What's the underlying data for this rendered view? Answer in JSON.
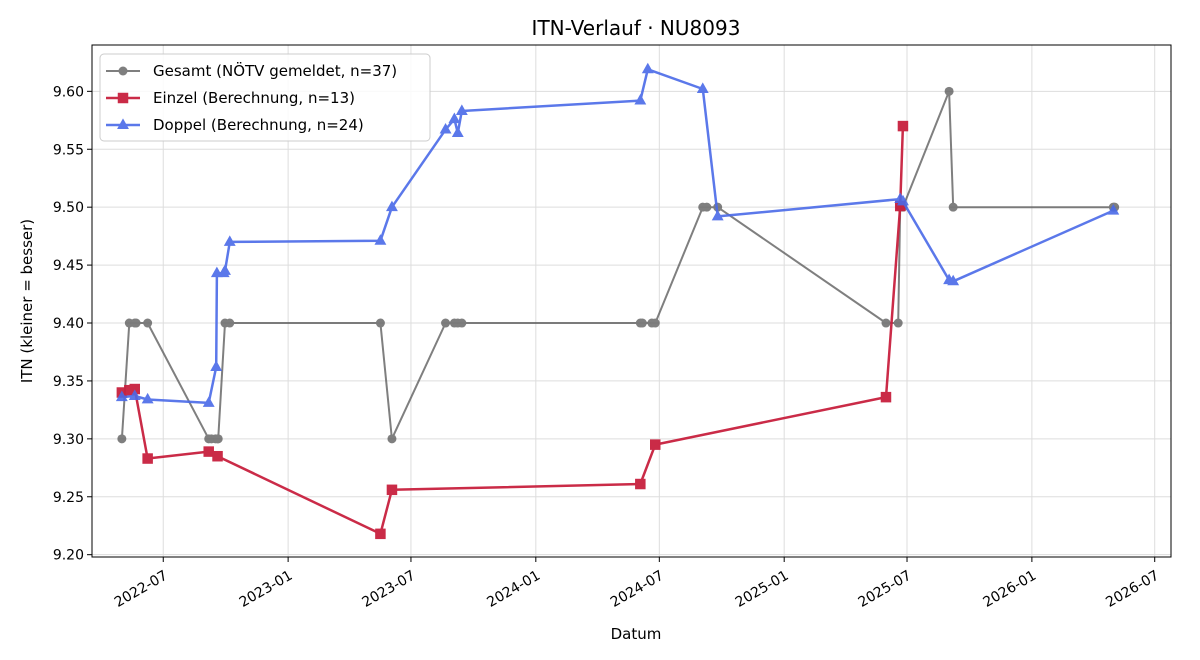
{
  "chart_data": {
    "type": "line",
    "title": "ITN-Verlauf · NU8093",
    "xlabel": "Datum",
    "ylabel": "ITN  (kleiner = besser)",
    "xlim": [
      "2022-03-18",
      "2026-07-25"
    ],
    "ylim": [
      9.198,
      9.64
    ],
    "x_ticks": [
      "2022-07",
      "2023-01",
      "2023-07",
      "2024-01",
      "2024-07",
      "2025-01",
      "2025-07",
      "2026-01",
      "2026-07"
    ],
    "y_ticks": [
      "9.20",
      "9.25",
      "9.30",
      "9.35",
      "9.40",
      "9.45",
      "9.50",
      "9.55",
      "9.60"
    ],
    "grid": true,
    "legend_position": "top-left",
    "series": [
      {
        "name": "Gesamt (NÖTV gemeldet, n=37)",
        "color": "#555555",
        "marker": "circle",
        "x": [
          "2022-05-01",
          "2022-05-12",
          "2022-05-20",
          "2022-05-22",
          "2022-06-08",
          "2022-09-06",
          "2022-09-10",
          "2022-09-16",
          "2022-09-19",
          "2022-09-20",
          "2022-09-30",
          "2022-10-07",
          "2023-05-17",
          "2023-06-03",
          "2023-08-21",
          "2023-09-03",
          "2023-09-08",
          "2023-09-14",
          "2024-06-03",
          "2024-06-06",
          "2024-06-20",
          "2024-06-25",
          "2024-09-03",
          "2024-09-09",
          "2024-09-25",
          "2025-05-31",
          "2025-06-18",
          "2025-06-21",
          "2025-06-25",
          "2025-09-01",
          "2025-09-07",
          "2026-05-01",
          "2026-05-03"
        ],
        "values": [
          9.3,
          9.4,
          9.4,
          9.4,
          9.4,
          9.3,
          9.3,
          9.3,
          9.3,
          9.3,
          9.4,
          9.4,
          9.4,
          9.3,
          9.4,
          9.4,
          9.4,
          9.4,
          9.4,
          9.4,
          9.4,
          9.4,
          9.5,
          9.5,
          9.5,
          9.4,
          9.4,
          9.5,
          9.5,
          9.6,
          9.5,
          9.5,
          9.5
        ]
      },
      {
        "name": "Einzel (Berechnung, n=13)",
        "color": "#c8203e",
        "marker": "square",
        "x": [
          "2022-05-01",
          "2022-05-12",
          "2022-05-20",
          "2022-06-08",
          "2022-09-06",
          "2022-09-19",
          "2023-05-17",
          "2023-06-03",
          "2024-06-03",
          "2024-06-25",
          "2025-05-31",
          "2025-06-21",
          "2025-06-25"
        ],
        "values": [
          9.34,
          9.342,
          9.343,
          9.283,
          9.289,
          9.285,
          9.218,
          9.256,
          9.261,
          9.295,
          9.336,
          9.501,
          9.57
        ]
      },
      {
        "name": "Doppel (Berechnung, n=24)",
        "color": "#4a6ae8",
        "marker": "triangle",
        "x": [
          "2022-05-01",
          "2022-05-20",
          "2022-06-08",
          "2022-09-06",
          "2022-09-17",
          "2022-09-18",
          "2022-09-28",
          "2022-09-30",
          "2022-10-07",
          "2023-05-17",
          "2023-06-03",
          "2023-08-21",
          "2023-09-03",
          "2023-09-08",
          "2023-09-14",
          "2024-06-03",
          "2024-06-14",
          "2024-09-03",
          "2024-09-25",
          "2025-06-21",
          "2025-06-25",
          "2025-09-01",
          "2025-09-07",
          "2026-05-01"
        ],
        "values": [
          9.336,
          9.337,
          9.334,
          9.331,
          9.362,
          9.443,
          9.443,
          9.445,
          9.47,
          9.471,
          9.5,
          9.567,
          9.576,
          9.564,
          9.583,
          9.592,
          9.619,
          9.602,
          9.492,
          9.507,
          9.505,
          9.437,
          9.436,
          9.497
        ]
      }
    ]
  }
}
